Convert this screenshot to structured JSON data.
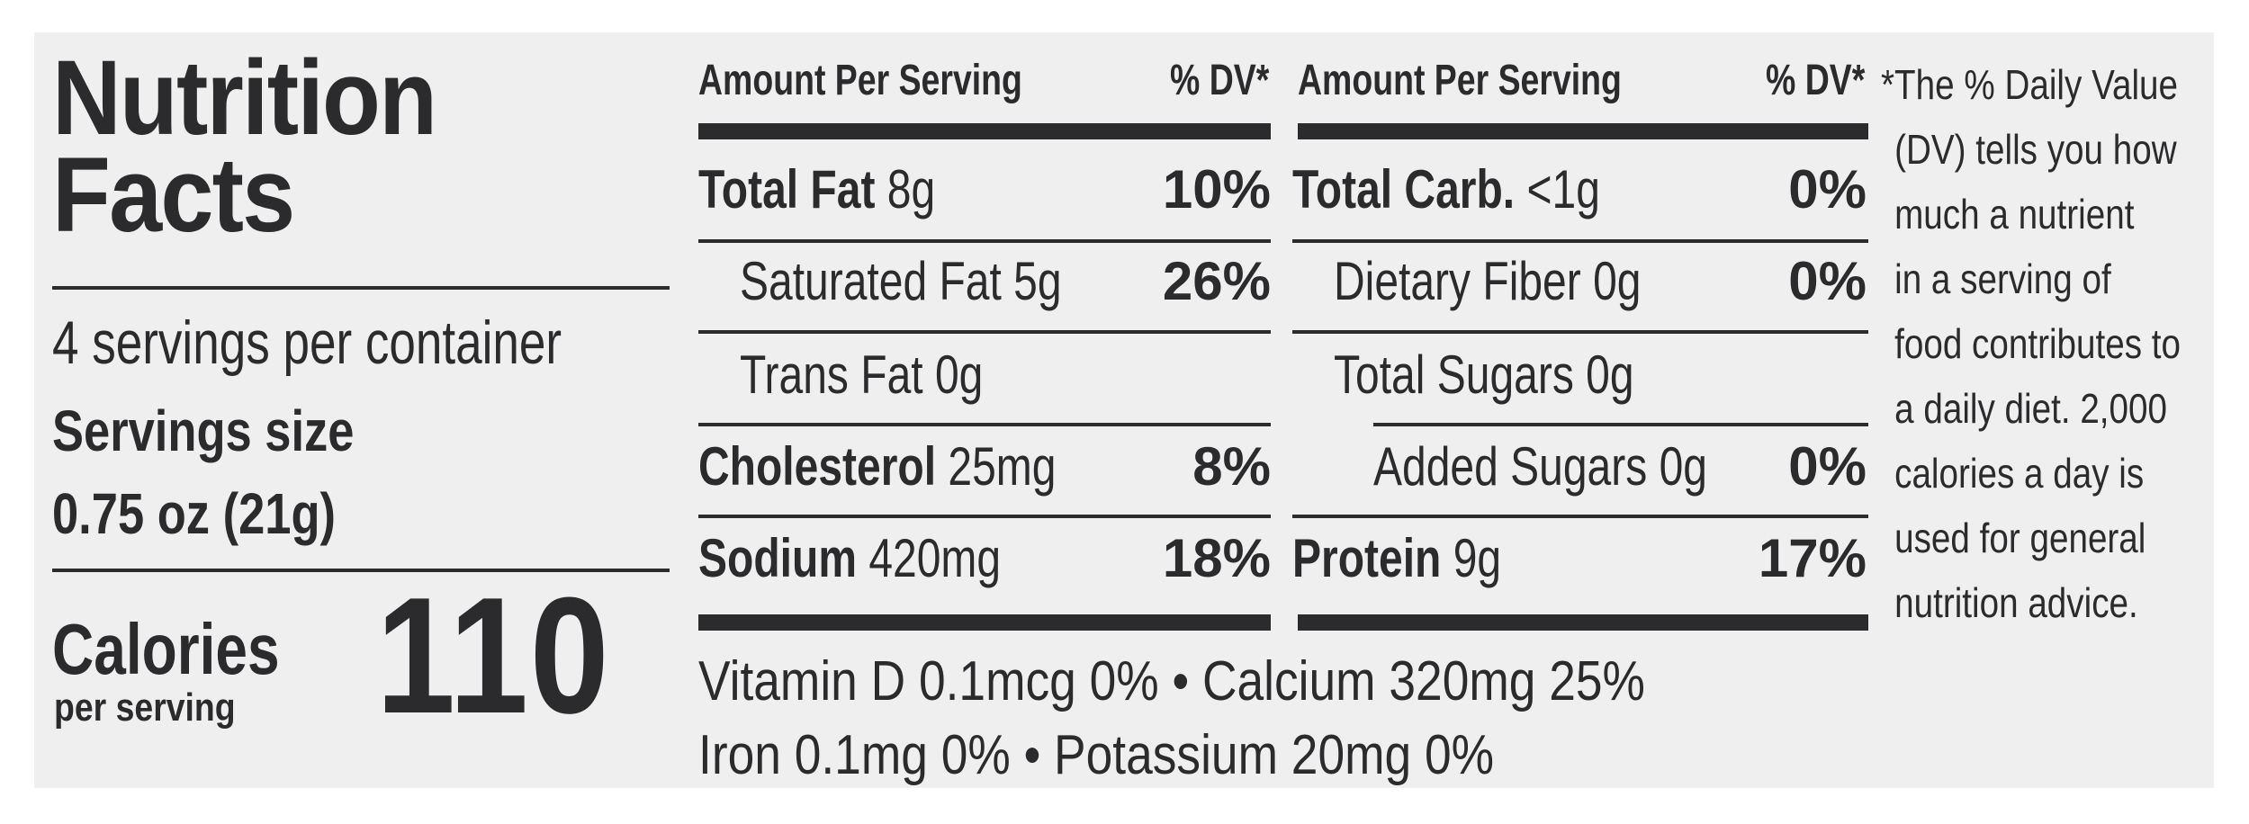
{
  "title_line1": "Nutrition",
  "title_line2": "Facts",
  "servings_per_container": "4 servings per container",
  "serving_size_label": "Servings size",
  "serving_size_value": "0.75 oz (21g)",
  "calories_label": "Calories",
  "calories_sub": "per serving",
  "calories_value": "110",
  "table_header": {
    "amount": "Amount Per Serving",
    "dv": "% DV*"
  },
  "left_rows": [
    {
      "name": "Total Fat",
      "amount": "8g",
      "dv": "10%"
    },
    {
      "name": "Saturated Fat",
      "amount": "5g",
      "dv": "26%"
    },
    {
      "name": "Trans Fat",
      "amount": "0g",
      "dv": ""
    },
    {
      "name": "Cholesterol",
      "amount": "25mg",
      "dv": "8%"
    },
    {
      "name": "Sodium",
      "amount": "420mg",
      "dv": "18%"
    }
  ],
  "right_rows": [
    {
      "name": "Total Carb.",
      "amount": "<1g",
      "dv": "0%"
    },
    {
      "name": "Dietary Fiber",
      "amount": "0g",
      "dv": "0%"
    },
    {
      "name": "Total Sugars",
      "amount": "0g",
      "dv": ""
    },
    {
      "name": "Added Sugars",
      "amount": "0g",
      "dv": "0%"
    },
    {
      "name": "Protein",
      "amount": "9g",
      "dv": "17%"
    }
  ],
  "vitamins_line1": "Vitamin D 0.1mcg 0% • Calcium 320mg 25%",
  "vitamins_line2": "Iron 0.1mg 0% • Potassium 20mg 0%",
  "footnote": [
    "*The % Daily Value",
    "(DV) tells you how",
    "much a nutrient",
    "in a serving of",
    "food contributes to",
    "a daily diet. 2,000",
    "calories a day is",
    "used for general",
    "nutrition advice."
  ]
}
